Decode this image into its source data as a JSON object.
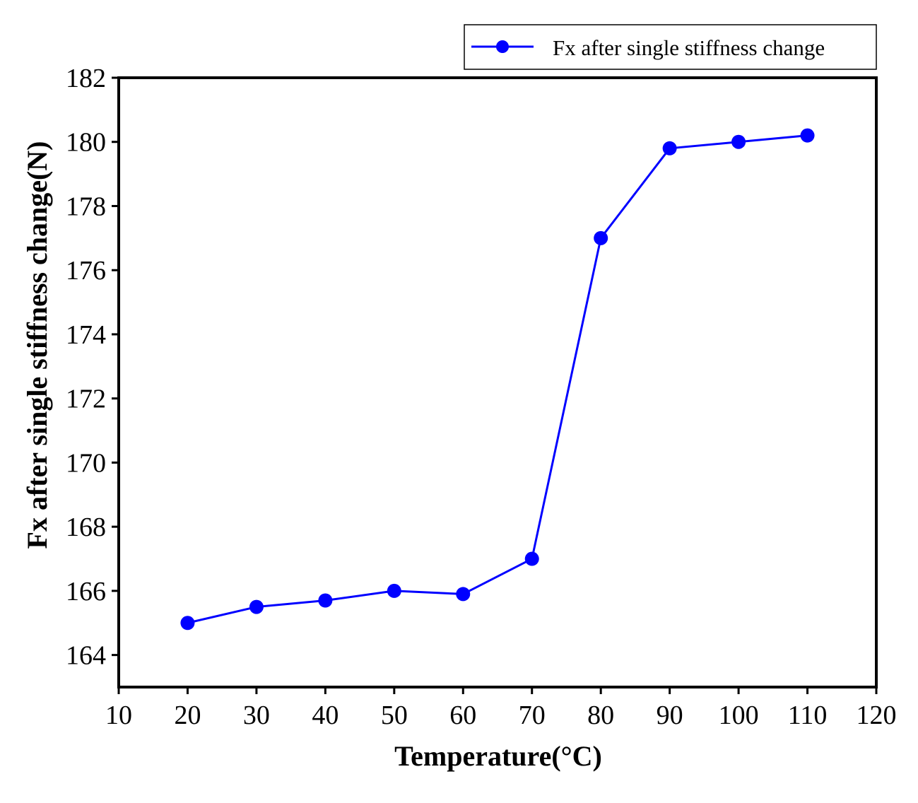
{
  "chart_data": {
    "type": "line",
    "title": "",
    "xlabel": "Temperature(°C)",
    "ylabel": "Fx after single stiffness change(N)",
    "xlim": [
      10,
      120
    ],
    "ylim": [
      163,
      182
    ],
    "xticks": [
      10,
      20,
      30,
      40,
      50,
      60,
      70,
      80,
      90,
      100,
      110,
      120
    ],
    "yticks": [
      164,
      166,
      168,
      170,
      172,
      174,
      176,
      178,
      180,
      182
    ],
    "grid": false,
    "legend_position": "top-right, outside plot area",
    "series": [
      {
        "name": "Fx after single stiffness change",
        "color": "#0000ff",
        "marker": "circle",
        "x": [
          20,
          30,
          40,
          50,
          60,
          70,
          80,
          90,
          100,
          110
        ],
        "values": [
          165.0,
          165.5,
          165.7,
          166.0,
          165.9,
          167.0,
          177.0,
          179.8,
          180.0,
          180.2
        ]
      }
    ]
  }
}
